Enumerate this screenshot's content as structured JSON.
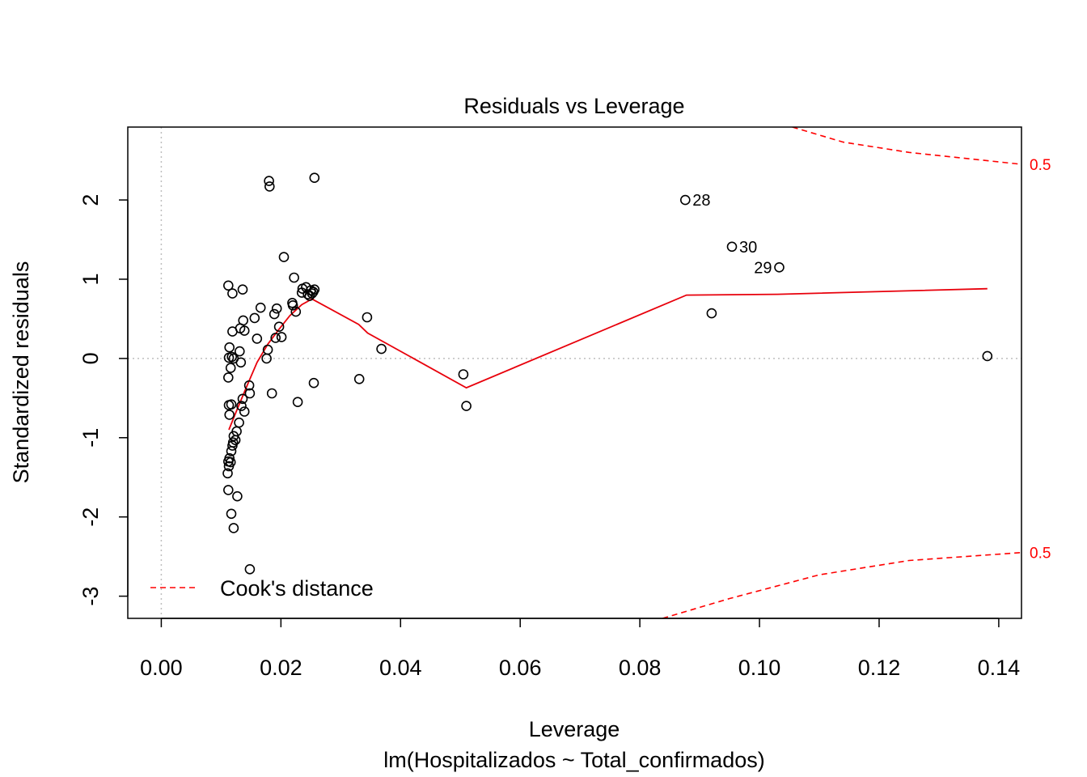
{
  "chart_data": {
    "type": "scatter",
    "title": "Residuals vs Leverage",
    "xlabel": "Leverage",
    "subtitle": "lm(Hospitalizados ~ Total_confirmados)",
    "ylabel": "Standardized residuals",
    "xlim": [
      -0.0056,
      0.1438
    ],
    "ylim": [
      -3.28,
      2.92
    ],
    "x_ticks": [
      "0.00",
      "0.02",
      "0.04",
      "0.06",
      "0.08",
      "0.10",
      "0.12",
      "0.14"
    ],
    "x_tick_values": [
      0,
      0.02,
      0.04,
      0.06,
      0.08,
      0.1,
      0.12,
      0.14
    ],
    "y_ticks": [
      "-3",
      "-2",
      "-1",
      "0",
      "1",
      "2"
    ],
    "y_tick_values": [
      -3,
      -2,
      -1,
      0,
      1,
      2
    ],
    "grid": false,
    "reference_lines": {
      "vertical_x": 0,
      "horizontal_y": 0,
      "style": "dotted",
      "color": "#bebebe"
    },
    "point_color": "#000000",
    "smooth_color": "#e8000b",
    "cook_color": "#ff0000",
    "legend": {
      "position": "bottom-left",
      "entries": [
        {
          "label": "Cook's distance",
          "style": "dashed",
          "color": "#ff0000"
        }
      ]
    },
    "points": [
      {
        "x": 0.0112,
        "y": 0.92
      },
      {
        "x": 0.0114,
        "y": 0.14
      },
      {
        "x": 0.0113,
        "y": 0.01
      },
      {
        "x": 0.0112,
        "y": -0.24
      },
      {
        "x": 0.0116,
        "y": -0.12
      },
      {
        "x": 0.0118,
        "y": 0.02
      },
      {
        "x": 0.0121,
        "y": 0.0
      },
      {
        "x": 0.0119,
        "y": 0.34
      },
      {
        "x": 0.0119,
        "y": 0.82
      },
      {
        "x": 0.0113,
        "y": -0.59
      },
      {
        "x": 0.0117,
        "y": -0.58
      },
      {
        "x": 0.0114,
        "y": -0.71
      },
      {
        "x": 0.0121,
        "y": -0.98
      },
      {
        "x": 0.0124,
        "y": -1.03
      },
      {
        "x": 0.012,
        "y": -1.06
      },
      {
        "x": 0.0119,
        "y": -1.1
      },
      {
        "x": 0.0117,
        "y": -1.17
      },
      {
        "x": 0.0114,
        "y": -1.26
      },
      {
        "x": 0.0112,
        "y": -1.3
      },
      {
        "x": 0.0113,
        "y": -1.36
      },
      {
        "x": 0.0111,
        "y": -1.45
      },
      {
        "x": 0.0116,
        "y": -1.31
      },
      {
        "x": 0.0126,
        "y": -0.92
      },
      {
        "x": 0.013,
        "y": -0.81
      },
      {
        "x": 0.0112,
        "y": -1.66
      },
      {
        "x": 0.0127,
        "y": -1.74
      },
      {
        "x": 0.0117,
        "y": -1.96
      },
      {
        "x": 0.0121,
        "y": -2.14
      },
      {
        "x": 0.0131,
        "y": 0.09
      },
      {
        "x": 0.0133,
        "y": -0.05
      },
      {
        "x": 0.0132,
        "y": 0.38
      },
      {
        "x": 0.0136,
        "y": 0.87
      },
      {
        "x": 0.0137,
        "y": 0.48
      },
      {
        "x": 0.0139,
        "y": 0.35
      },
      {
        "x": 0.0136,
        "y": -0.51
      },
      {
        "x": 0.0134,
        "y": -0.6
      },
      {
        "x": 0.0139,
        "y": -0.67
      },
      {
        "x": 0.0147,
        "y": -0.34
      },
      {
        "x": 0.0148,
        "y": -0.44
      },
      {
        "x": 0.0148,
        "y": -2.66
      },
      {
        "x": 0.0156,
        "y": 0.51
      },
      {
        "x": 0.016,
        "y": 0.25
      },
      {
        "x": 0.0166,
        "y": 0.64
      },
      {
        "x": 0.0176,
        "y": 0.0
      },
      {
        "x": 0.0178,
        "y": 0.11
      },
      {
        "x": 0.018,
        "y": 2.24
      },
      {
        "x": 0.0181,
        "y": 2.17
      },
      {
        "x": 0.0185,
        "y": -0.44
      },
      {
        "x": 0.0189,
        "y": 0.56
      },
      {
        "x": 0.0191,
        "y": 0.26
      },
      {
        "x": 0.0193,
        "y": 0.63
      },
      {
        "x": 0.0197,
        "y": 0.4
      },
      {
        "x": 0.0201,
        "y": 0.27
      },
      {
        "x": 0.0205,
        "y": 1.28
      },
      {
        "x": 0.0219,
        "y": 0.7
      },
      {
        "x": 0.022,
        "y": 0.67
      },
      {
        "x": 0.0222,
        "y": 1.02
      },
      {
        "x": 0.0225,
        "y": 0.59
      },
      {
        "x": 0.0228,
        "y": -0.55
      },
      {
        "x": 0.0235,
        "y": 0.83
      },
      {
        "x": 0.0236,
        "y": 0.88
      },
      {
        "x": 0.0242,
        "y": 0.9
      },
      {
        "x": 0.0245,
        "y": 0.81
      },
      {
        "x": 0.0248,
        "y": 0.79
      },
      {
        "x": 0.025,
        "y": 0.86
      },
      {
        "x": 0.0252,
        "y": 0.82
      },
      {
        "x": 0.0254,
        "y": 0.84
      },
      {
        "x": 0.0256,
        "y": 0.87
      },
      {
        "x": 0.0256,
        "y": 2.28
      },
      {
        "x": 0.0255,
        "y": -0.31
      },
      {
        "x": 0.0331,
        "y": -0.26
      },
      {
        "x": 0.0344,
        "y": 0.52
      },
      {
        "x": 0.0368,
        "y": 0.12
      },
      {
        "x": 0.0505,
        "y": -0.2
      },
      {
        "x": 0.051,
        "y": -0.6
      },
      {
        "x": 0.0876,
        "y": 2.0,
        "label": "28"
      },
      {
        "x": 0.0954,
        "y": 1.41,
        "label": "30"
      },
      {
        "x": 0.1033,
        "y": 1.15,
        "label": "29"
      },
      {
        "x": 0.092,
        "y": 0.57
      },
      {
        "x": 0.1381,
        "y": 0.03
      }
    ],
    "smooth_line": [
      {
        "x": 0.0113,
        "y": -0.9
      },
      {
        "x": 0.0128,
        "y": -0.62
      },
      {
        "x": 0.0143,
        "y": -0.35
      },
      {
        "x": 0.016,
        "y": -0.05
      },
      {
        "x": 0.0178,
        "y": 0.18
      },
      {
        "x": 0.0196,
        "y": 0.36
      },
      {
        "x": 0.0215,
        "y": 0.54
      },
      {
        "x": 0.0235,
        "y": 0.68
      },
      {
        "x": 0.0252,
        "y": 0.75
      },
      {
        "x": 0.033,
        "y": 0.43
      },
      {
        "x": 0.0345,
        "y": 0.32
      },
      {
        "x": 0.051,
        "y": -0.37
      },
      {
        "x": 0.0878,
        "y": 0.8
      },
      {
        "x": 0.103,
        "y": 0.81
      },
      {
        "x": 0.1381,
        "y": 0.88
      }
    ],
    "cook_lines": [
      {
        "level": "0.5",
        "sign": 1,
        "points": [
          {
            "x": 0.1055,
            "y": 2.92
          },
          {
            "x": 0.114,
            "y": 2.73
          },
          {
            "x": 0.125,
            "y": 2.6
          },
          {
            "x": 0.1438,
            "y": 2.45
          }
        ]
      },
      {
        "level": "0.5",
        "sign": -1,
        "points": [
          {
            "x": 0.0838,
            "y": -3.28
          },
          {
            "x": 0.095,
            "y": -3.03
          },
          {
            "x": 0.11,
            "y": -2.73
          },
          {
            "x": 0.125,
            "y": -2.55
          },
          {
            "x": 0.1438,
            "y": -2.45
          }
        ]
      }
    ]
  }
}
